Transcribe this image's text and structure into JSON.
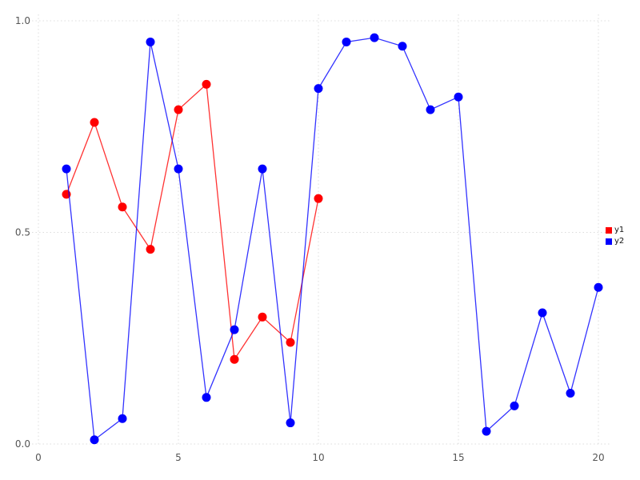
{
  "figure": {
    "background": "#ffffff",
    "grid_color": "#dcdcdc",
    "tick_color": "#555555"
  },
  "legend": {
    "entries": [
      {
        "label": "y1",
        "color": "#ff0000"
      },
      {
        "label": "y2",
        "color": "#0000ff"
      }
    ]
  },
  "chart_data": {
    "type": "line",
    "title": "",
    "xlabel": "",
    "ylabel": "",
    "xlim": [
      0,
      20
    ],
    "ylim": [
      0.0,
      1.0
    ],
    "xticks": [
      0,
      5,
      10,
      15,
      20
    ],
    "xtick_labels": [
      "0",
      "5",
      "10",
      "15",
      "20"
    ],
    "yticks": [
      0.0,
      0.5,
      1.0
    ],
    "ytick_labels": [
      "0.0",
      "0.5",
      "1.0"
    ],
    "grid": true,
    "legend_position": "right",
    "marker": "circle",
    "series": [
      {
        "name": "y1",
        "color": "#ff0000",
        "x": [
          1,
          2,
          3,
          4,
          5,
          6,
          7,
          8,
          9,
          10
        ],
        "values": [
          0.59,
          0.76,
          0.56,
          0.46,
          0.79,
          0.85,
          0.2,
          0.3,
          0.24,
          0.58
        ]
      },
      {
        "name": "y2",
        "color": "#0000ff",
        "x": [
          1,
          2,
          3,
          4,
          5,
          6,
          7,
          8,
          9,
          10,
          11,
          12,
          13,
          14,
          15,
          16,
          17,
          18,
          19,
          20
        ],
        "values": [
          0.65,
          0.01,
          0.06,
          0.95,
          0.65,
          0.11,
          0.27,
          0.65,
          0.05,
          0.84,
          0.95,
          0.96,
          0.94,
          0.79,
          0.82,
          0.03,
          0.09,
          0.31,
          0.12,
          0.37
        ]
      }
    ]
  }
}
